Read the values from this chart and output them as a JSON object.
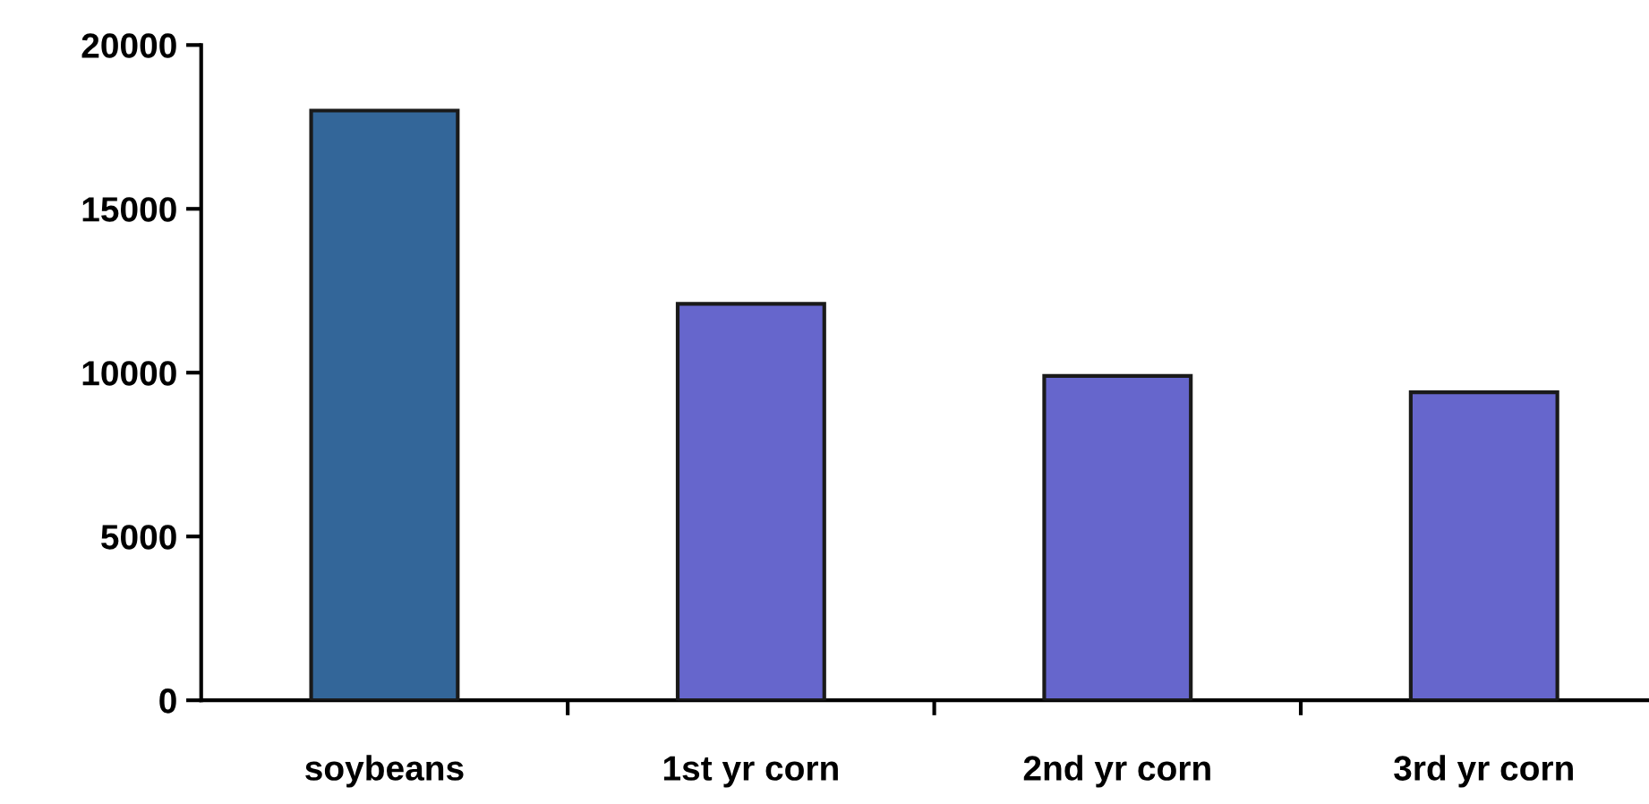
{
  "chart_data": {
    "type": "bar",
    "categories": [
      "soybeans",
      "1st yr corn",
      "2nd yr corn",
      "3rd yr corn"
    ],
    "values": [
      18000,
      12100,
      9900,
      9400
    ],
    "colors": [
      "#336699",
      "#6666cc",
      "#6666cc",
      "#6666cc"
    ],
    "ylim": [
      0,
      20000
    ],
    "yticks": [
      0,
      5000,
      10000,
      15000,
      20000
    ],
    "grid": false
  }
}
